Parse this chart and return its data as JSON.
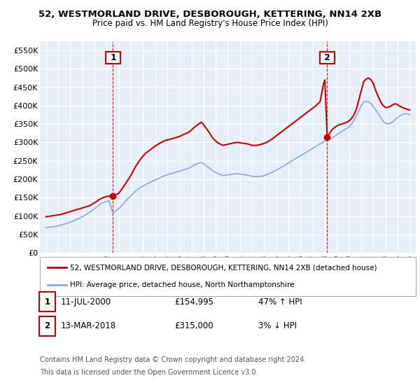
{
  "title": "52, WESTMORLAND DRIVE, DESBOROUGH, KETTERING, NN14 2XB",
  "subtitle": "Price paid vs. HM Land Registry's House Price Index (HPI)",
  "legend_line1": "52, WESTMORLAND DRIVE, DESBOROUGH, KETTERING, NN14 2XB (detached house)",
  "legend_line2": "HPI: Average price, detached house, North Northamptonshire",
  "footnote1": "Contains HM Land Registry data © Crown copyright and database right 2024.",
  "footnote2": "This data is licensed under the Open Government Licence v3.0.",
  "annotation1": {
    "label": "1",
    "date": "11-JUL-2000",
    "price": "£154,995",
    "change": "47% ↑ HPI",
    "x_year": 2000.53,
    "y_val": 154995
  },
  "annotation2": {
    "label": "2",
    "date": "13-MAR-2018",
    "price": "£315,000",
    "change": "3% ↓ HPI",
    "x_year": 2018.19,
    "y_val": 315000
  },
  "red_color": "#cc0000",
  "blue_color": "#88aadd",
  "chart_bg": "#e8eef8",
  "background_color": "#ffffff",
  "grid_color": "#ffffff",
  "ylim": [
    0,
    575000
  ],
  "yticks": [
    0,
    50000,
    100000,
    150000,
    200000,
    250000,
    300000,
    350000,
    400000,
    450000,
    500000,
    550000
  ],
  "ytick_labels": [
    "£0",
    "£50K",
    "£100K",
    "£150K",
    "£200K",
    "£250K",
    "£300K",
    "£350K",
    "£400K",
    "£450K",
    "£500K",
    "£550K"
  ],
  "xlim": [
    1994.5,
    2025.5
  ],
  "xticks": [
    1995,
    1996,
    1997,
    1998,
    1999,
    2000,
    2001,
    2002,
    2003,
    2004,
    2005,
    2006,
    2007,
    2008,
    2009,
    2010,
    2011,
    2012,
    2013,
    2014,
    2015,
    2016,
    2017,
    2018,
    2019,
    2020,
    2021,
    2022,
    2023,
    2024,
    2025
  ],
  "red_line_x": [
    1995.0,
    1995.2,
    1995.4,
    1995.6,
    1995.8,
    1996.0,
    1996.2,
    1996.4,
    1996.6,
    1996.8,
    1997.0,
    1997.2,
    1997.4,
    1997.6,
    1997.8,
    1998.0,
    1998.2,
    1998.4,
    1998.6,
    1998.8,
    1999.0,
    1999.2,
    1999.4,
    1999.6,
    1999.8,
    2000.0,
    2000.2,
    2000.53,
    2000.8,
    2001.0,
    2001.3,
    2001.6,
    2002.0,
    2002.4,
    2002.8,
    2003.2,
    2003.6,
    2004.0,
    2004.4,
    2004.8,
    2005.2,
    2005.6,
    2006.0,
    2006.4,
    2006.8,
    2007.2,
    2007.6,
    2007.8,
    2008.0,
    2008.4,
    2008.8,
    2009.2,
    2009.6,
    2010.0,
    2010.4,
    2010.8,
    2011.2,
    2011.6,
    2012.0,
    2012.4,
    2012.8,
    2013.2,
    2013.6,
    2014.0,
    2014.4,
    2014.8,
    2015.2,
    2015.6,
    2016.0,
    2016.4,
    2016.8,
    2017.2,
    2017.6,
    2017.9,
    2018.0,
    2018.19,
    2018.4,
    2018.6,
    2018.8,
    2019.0,
    2019.2,
    2019.4,
    2019.6,
    2019.8,
    2020.0,
    2020.2,
    2020.4,
    2020.6,
    2020.8,
    2021.0,
    2021.2,
    2021.4,
    2021.6,
    2021.8,
    2022.0,
    2022.2,
    2022.4,
    2022.6,
    2022.8,
    2023.0,
    2023.2,
    2023.4,
    2023.6,
    2023.8,
    2024.0,
    2024.2,
    2024.4,
    2024.6,
    2024.8,
    2025.0
  ],
  "red_line_y": [
    98000,
    99000,
    100000,
    101000,
    102000,
    103000,
    104000,
    106000,
    108000,
    110000,
    112000,
    114000,
    116000,
    118000,
    120000,
    122000,
    124000,
    126000,
    128000,
    132000,
    136000,
    140000,
    145000,
    148000,
    151000,
    153000,
    154000,
    154995,
    158000,
    162000,
    175000,
    190000,
    210000,
    235000,
    255000,
    270000,
    280000,
    290000,
    298000,
    305000,
    308000,
    312000,
    316000,
    322000,
    328000,
    340000,
    350000,
    355000,
    348000,
    330000,
    310000,
    298000,
    292000,
    295000,
    298000,
    300000,
    298000,
    296000,
    292000,
    292000,
    295000,
    300000,
    308000,
    318000,
    328000,
    338000,
    348000,
    358000,
    368000,
    378000,
    388000,
    398000,
    410000,
    460000,
    470000,
    315000,
    325000,
    335000,
    340000,
    345000,
    348000,
    350000,
    352000,
    355000,
    358000,
    365000,
    375000,
    390000,
    415000,
    440000,
    465000,
    472000,
    475000,
    470000,
    460000,
    440000,
    425000,
    410000,
    400000,
    395000,
    395000,
    398000,
    402000,
    405000,
    402000,
    398000,
    395000,
    392000,
    390000,
    388000
  ],
  "blue_line_x": [
    1995.0,
    1995.2,
    1995.4,
    1995.6,
    1995.8,
    1996.0,
    1996.2,
    1996.4,
    1996.6,
    1996.8,
    1997.0,
    1997.2,
    1997.4,
    1997.6,
    1997.8,
    1998.0,
    1998.2,
    1998.4,
    1998.6,
    1998.8,
    1999.0,
    1999.2,
    1999.4,
    1999.6,
    1999.8,
    2000.0,
    2000.2,
    2000.53,
    2000.8,
    2001.0,
    2001.3,
    2001.6,
    2002.0,
    2002.4,
    2002.8,
    2003.2,
    2003.6,
    2004.0,
    2004.4,
    2004.8,
    2005.2,
    2005.6,
    2006.0,
    2006.4,
    2006.8,
    2007.2,
    2007.6,
    2007.8,
    2008.0,
    2008.4,
    2008.8,
    2009.2,
    2009.6,
    2010.0,
    2010.4,
    2010.8,
    2011.2,
    2011.6,
    2012.0,
    2012.4,
    2012.8,
    2013.2,
    2013.6,
    2014.0,
    2014.4,
    2014.8,
    2015.2,
    2015.6,
    2016.0,
    2016.4,
    2016.8,
    2017.2,
    2017.6,
    2017.9,
    2018.0,
    2018.19,
    2018.4,
    2018.6,
    2018.8,
    2019.0,
    2019.2,
    2019.4,
    2019.6,
    2019.8,
    2020.0,
    2020.2,
    2020.4,
    2020.6,
    2020.8,
    2021.0,
    2021.2,
    2021.4,
    2021.6,
    2021.8,
    2022.0,
    2022.2,
    2022.4,
    2022.6,
    2022.8,
    2023.0,
    2023.2,
    2023.4,
    2023.6,
    2023.8,
    2024.0,
    2024.2,
    2024.4,
    2024.6,
    2024.8,
    2025.0
  ],
  "blue_line_y": [
    68000,
    69000,
    70000,
    71000,
    72000,
    73000,
    75000,
    77000,
    79000,
    81000,
    83000,
    86000,
    89000,
    92000,
    95000,
    98000,
    102000,
    106000,
    110000,
    115000,
    120000,
    125000,
    130000,
    135000,
    138000,
    140000,
    142000,
    108000,
    115000,
    120000,
    130000,
    142000,
    155000,
    168000,
    178000,
    185000,
    192000,
    198000,
    204000,
    210000,
    214000,
    218000,
    222000,
    226000,
    230000,
    238000,
    244000,
    246000,
    242000,
    232000,
    222000,
    215000,
    210000,
    212000,
    214000,
    215000,
    213000,
    211000,
    208000,
    207000,
    208000,
    212000,
    218000,
    225000,
    232000,
    240000,
    248000,
    256000,
    264000,
    272000,
    280000,
    288000,
    296000,
    302000,
    304000,
    305000,
    308000,
    312000,
    316000,
    322000,
    326000,
    330000,
    334000,
    338000,
    342000,
    350000,
    360000,
    372000,
    385000,
    400000,
    410000,
    412000,
    410000,
    405000,
    398000,
    388000,
    378000,
    368000,
    358000,
    352000,
    350000,
    352000,
    356000,
    362000,
    368000,
    372000,
    376000,
    378000,
    378000,
    375000
  ]
}
